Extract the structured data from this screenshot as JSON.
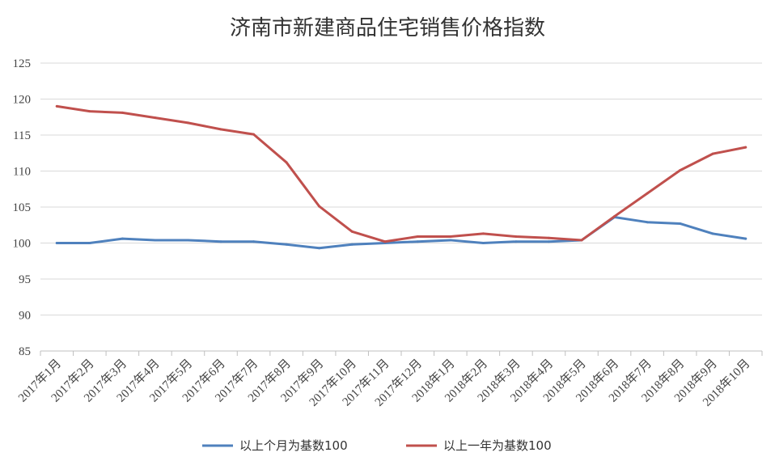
{
  "chart_data": {
    "type": "line",
    "title": "济南市新建商品住宅销售价格指数",
    "xlabel": "",
    "ylabel": "",
    "ylim": [
      85,
      125
    ],
    "yticks": [
      85,
      90,
      95,
      100,
      105,
      110,
      115,
      120,
      125
    ],
    "grid": true,
    "legend_position": "bottom",
    "categories": [
      "2017年1月",
      "2017年2月",
      "2017年3月",
      "2017年4月",
      "2017年5月",
      "2017年6月",
      "2017年7月",
      "2017年8月",
      "2017年9月",
      "2017年10月",
      "2017年11月",
      "2017年12月",
      "2018年1月",
      "2018年2月",
      "2018年3月",
      "2018年4月",
      "2018年5月",
      "2018年6月",
      "2018年7月",
      "2018年8月",
      "2018年9月",
      "2018年10月"
    ],
    "series": [
      {
        "name": "以上个月为基数100",
        "color": "#4f81bd",
        "values": [
          100.0,
          100.0,
          100.6,
          100.4,
          100.4,
          100.2,
          100.2,
          99.8,
          99.3,
          99.8,
          100.0,
          100.2,
          100.4,
          100.0,
          100.2,
          100.2,
          100.4,
          103.6,
          102.9,
          102.7,
          101.3,
          100.6
        ]
      },
      {
        "name": "以上一年为基数100",
        "color": "#c0504d",
        "values": [
          119.0,
          118.3,
          118.1,
          117.4,
          116.7,
          115.8,
          115.1,
          111.2,
          105.1,
          101.6,
          100.2,
          100.9,
          100.9,
          101.3,
          100.9,
          100.7,
          100.4,
          103.7,
          106.9,
          110.1,
          112.4,
          113.3
        ]
      }
    ]
  }
}
